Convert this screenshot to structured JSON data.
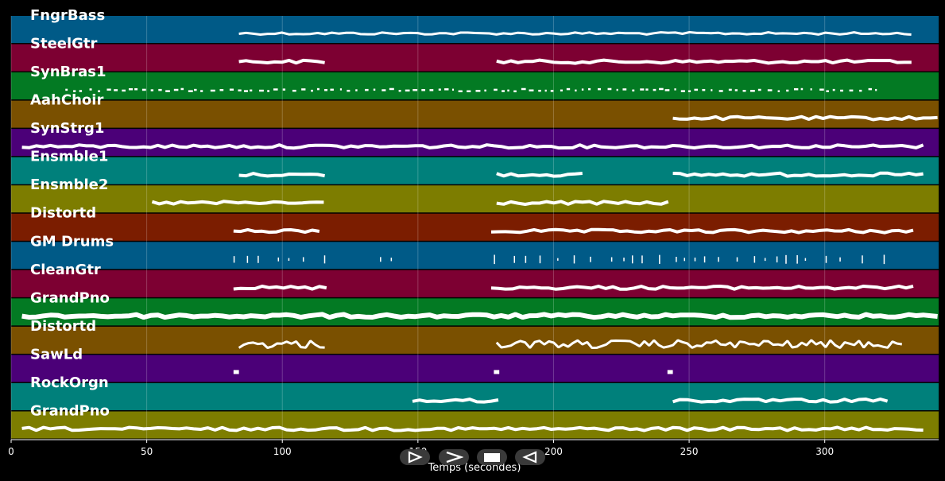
{
  "chart_data": {
    "type": "piano-roll",
    "xlabel": "Temps (secondes)",
    "xlim": [
      0,
      342
    ],
    "xticks": [
      0,
      50,
      100,
      150,
      200,
      250,
      300
    ],
    "grid": true,
    "tracks": [
      {
        "name": "FngrBass",
        "color": "#005a87",
        "style": "dense",
        "segments": [
          [
            84,
            334
          ]
        ],
        "gaps": []
      },
      {
        "name": "SteelGtr",
        "color": "#7d0032",
        "style": "line",
        "segments": [
          [
            84,
            116
          ],
          [
            179,
            333
          ]
        ],
        "gaps": []
      },
      {
        "name": "SynBras1",
        "color": "#037a23",
        "style": "dots",
        "segments": [
          [
            20,
            322
          ]
        ],
        "gaps": []
      },
      {
        "name": "AahChoir",
        "color": "#7a5000",
        "style": "line",
        "segments": [
          [
            244,
            342
          ]
        ],
        "gaps": []
      },
      {
        "name": "SynStrg1",
        "color": "#4b0078",
        "style": "line",
        "segments": [
          [
            4,
            337
          ]
        ],
        "gaps": []
      },
      {
        "name": "Ensmble1",
        "color": "#00807b",
        "style": "line",
        "segments": [
          [
            84,
            116
          ],
          [
            179,
            212
          ],
          [
            244,
            337
          ]
        ],
        "gaps": []
      },
      {
        "name": "Ensmble2",
        "color": "#7d7d00",
        "style": "line",
        "segments": [
          [
            52,
            116
          ],
          [
            179,
            244
          ]
        ],
        "gaps": []
      },
      {
        "name": "Distortd",
        "color": "#7b1d00",
        "style": "line",
        "segments": [
          [
            82,
            116
          ],
          [
            177,
            333
          ]
        ],
        "gaps": []
      },
      {
        "name": "GM Drums",
        "color": "#005a87",
        "style": "drums",
        "segments": [
          [
            82,
            116
          ],
          [
            136,
            144
          ],
          [
            178,
            322
          ]
        ],
        "gaps": []
      },
      {
        "name": "CleanGtr",
        "color": "#7d0032",
        "style": "line",
        "segments": [
          [
            82,
            117
          ],
          [
            177,
            333
          ]
        ],
        "gaps": []
      },
      {
        "name": "GrandPno",
        "color": "#037a23",
        "style": "thick",
        "segments": [
          [
            4,
            342
          ]
        ],
        "gaps": []
      },
      {
        "name": "Distortd",
        "color": "#7a5000",
        "style": "wavy",
        "segments": [
          [
            84,
            116
          ],
          [
            179,
            330
          ]
        ],
        "gaps": []
      },
      {
        "name": "SawLd",
        "color": "#4b0078",
        "style": "blips",
        "segments": [
          [
            82,
            84
          ],
          [
            178,
            180
          ],
          [
            242,
            244
          ]
        ],
        "gaps": []
      },
      {
        "name": "RockOrgn",
        "color": "#00807b",
        "style": "line",
        "segments": [
          [
            148,
            180
          ],
          [
            244,
            324
          ]
        ],
        "gaps": []
      },
      {
        "name": "GrandPno",
        "color": "#7d7d00",
        "style": "line",
        "segments": [
          [
            4,
            337
          ]
        ],
        "gaps": []
      }
    ]
  },
  "controls": {
    "play_label": "▷",
    "forward_label": ">",
    "stop_label": "■",
    "back_label": "◁"
  }
}
